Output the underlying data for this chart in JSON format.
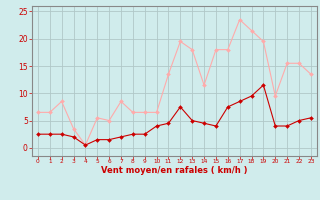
{
  "x": [
    0,
    1,
    2,
    3,
    4,
    5,
    6,
    7,
    8,
    9,
    10,
    11,
    12,
    13,
    14,
    15,
    16,
    17,
    18,
    19,
    20,
    21,
    22,
    23
  ],
  "y_moyen": [
    2.5,
    2.5,
    2.5,
    2.0,
    0.5,
    1.5,
    1.5,
    2.0,
    2.5,
    2.5,
    4.0,
    4.5,
    7.5,
    5.0,
    4.5,
    4.0,
    7.5,
    8.5,
    9.5,
    11.5,
    4.0,
    4.0,
    5.0,
    5.5
  ],
  "y_rafales": [
    6.5,
    6.5,
    8.5,
    3.5,
    0.5,
    5.5,
    5.0,
    8.5,
    6.5,
    6.5,
    6.5,
    13.5,
    19.5,
    18.0,
    11.5,
    18.0,
    18.0,
    23.5,
    21.5,
    19.5,
    9.5,
    15.5,
    15.5,
    13.5
  ],
  "color_moyen": "#cc0000",
  "color_rafales": "#ffaaaa",
  "bg_color": "#d0ecec",
  "grid_color": "#b0c8c8",
  "xlabel": "Vent moyen/en rafales ( km/h )",
  "xlabel_color": "#cc0000",
  "tick_color": "#cc0000",
  "axis_color": "#888888",
  "ylim": [
    -1.5,
    26
  ],
  "yticks": [
    0,
    5,
    10,
    15,
    20,
    25
  ],
  "xlim": [
    -0.5,
    23.5
  ]
}
